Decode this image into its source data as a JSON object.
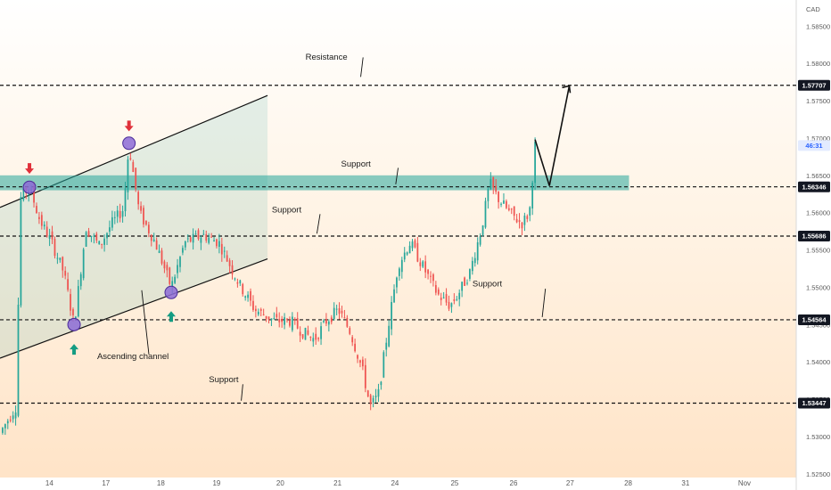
{
  "chart_data": {
    "type": "candlestick",
    "currency": "CAD",
    "y_range": [
      1.5245,
      1.5885
    ],
    "y_ticks": [
      "1.58500",
      "1.58000",
      "1.57500",
      "1.57000",
      "1.56500",
      "1.56000",
      "1.55500",
      "1.55000",
      "1.54500",
      "1.54000",
      "1.53500",
      "1.53000",
      "1.52500"
    ],
    "x_ticks": [
      "14",
      "17",
      "18",
      "19",
      "20",
      "21",
      "24",
      "25",
      "26",
      "27",
      "28",
      "31",
      "Nov"
    ],
    "price_labels": [
      {
        "text": "1.57707",
        "value": 1.57707,
        "style": "dark"
      },
      {
        "text": "46:31",
        "value": 1.569,
        "style": "current"
      },
      {
        "text": "1.56346",
        "value": 1.56346,
        "style": "dark"
      },
      {
        "text": "1.55686",
        "value": 1.55686,
        "style": "dark"
      },
      {
        "text": "1.54564",
        "value": 1.54564,
        "style": "dark"
      },
      {
        "text": "1.53447",
        "value": 1.53447,
        "style": "dark"
      }
    ],
    "levels": [
      1.57707,
      1.56346,
      1.55686,
      1.54564,
      1.53447
    ],
    "support_zone": [
      1.563,
      1.565
    ],
    "annotations": [
      {
        "text": "Resistance",
        "value": 1.5805,
        "x": 0.41
      },
      {
        "text": "Support",
        "value": 1.5662,
        "x": 0.447
      },
      {
        "text": "Support",
        "value": 1.56,
        "x": 0.36
      },
      {
        "text": "Support",
        "value": 1.5501,
        "x": 0.612
      },
      {
        "text": "Ascending channel",
        "value": 1.5404,
        "x": 0.167
      },
      {
        "text": "Support",
        "value": 1.5373,
        "x": 0.281
      }
    ],
    "channel": {
      "upper": [
        1.5607,
        1.5757
      ],
      "lower": [
        1.5405,
        1.5538
      ]
    },
    "touch_points": [
      {
        "value": 1.5634,
        "x": 0.037
      },
      {
        "value": 1.5693,
        "x": 0.162
      },
      {
        "value": 1.545,
        "x": 0.093
      },
      {
        "value": 1.5493,
        "x": 0.215
      }
    ],
    "signals": [
      {
        "type": "sell",
        "value": 1.5658,
        "x": 0.037
      },
      {
        "type": "sell",
        "value": 1.5715,
        "x": 0.162
      },
      {
        "type": "buy",
        "value": 1.5418,
        "x": 0.093
      },
      {
        "type": "buy",
        "value": 1.5462,
        "x": 0.215
      }
    ],
    "projection": [
      1.5698,
      1.5636,
      1.577
    ],
    "colors": {
      "up": "#26a69a",
      "down": "#ef5350",
      "zone": "#26a69a",
      "dark_label": "#131722",
      "current_label": "#2962ff"
    }
  }
}
